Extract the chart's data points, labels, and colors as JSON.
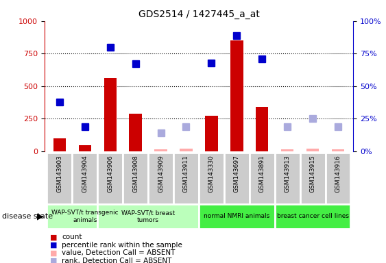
{
  "title": "GDS2514 / 1427445_a_at",
  "samples": [
    "GSM143903",
    "GSM143904",
    "GSM143906",
    "GSM143908",
    "GSM143909",
    "GSM143911",
    "GSM143330",
    "GSM143697",
    "GSM143891",
    "GSM143913",
    "GSM143915",
    "GSM143916"
  ],
  "count_values": [
    100,
    45,
    560,
    290,
    15,
    20,
    270,
    850,
    340,
    15,
    20,
    15
  ],
  "count_absent": [
    false,
    false,
    false,
    false,
    true,
    true,
    false,
    false,
    false,
    true,
    true,
    true
  ],
  "rank_values": [
    38,
    19,
    80,
    67,
    14,
    19,
    68,
    89,
    71,
    19,
    25,
    19
  ],
  "rank_absent": [
    false,
    false,
    false,
    false,
    true,
    true,
    false,
    false,
    false,
    true,
    true,
    true
  ],
  "groups_def": [
    [
      0,
      2,
      "WAP-SVT/t transgenic\nanimals",
      "#bbffbb"
    ],
    [
      2,
      5,
      "WAP-SVT/t breast\ntumors",
      "#bbffbb"
    ],
    [
      6,
      8,
      "normal NMRI animals",
      "#44ee44"
    ],
    [
      9,
      11,
      "breast cancer cell lines",
      "#44ee44"
    ]
  ],
  "ylim_left": [
    0,
    1000
  ],
  "ylim_right": [
    0,
    100
  ],
  "yticks_left": [
    0,
    250,
    500,
    750,
    1000
  ],
  "yticks_right": [
    0,
    25,
    50,
    75,
    100
  ],
  "bar_color_present": "#cc0000",
  "bar_color_absent": "#ffaaaa",
  "rank_color_present": "#0000cc",
  "rank_color_absent": "#aaaadd",
  "bar_width": 0.5,
  "marker_size": 7,
  "bg_color": "#ffffff",
  "grid_color": "#000000",
  "sample_box_color": "#cccccc",
  "sample_box_edge": "#ffffff"
}
